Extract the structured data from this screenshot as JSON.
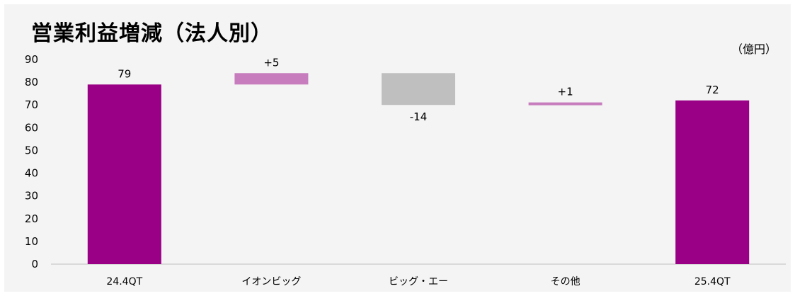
{
  "title": "営業利益増減（法人別）",
  "unit": "（億円）",
  "colors": {
    "total": "#990085",
    "increase": "#c77dbd",
    "decrease": "#bfbfbf",
    "background": "#f4f4f4",
    "axis": "#bfbfbf"
  },
  "chart_data": {
    "type": "bar",
    "subtype": "waterfall",
    "title": "営業利益増減（法人別）",
    "unit": "（億円）",
    "categories": [
      "24.4QT",
      "イオンビッグ",
      "ビッグ・エー",
      "その他",
      "25.4QT"
    ],
    "steps": [
      {
        "category": "24.4QT",
        "kind": "total",
        "value": 79,
        "label": "79"
      },
      {
        "category": "イオンビッグ",
        "kind": "increase",
        "value": 5,
        "label": "+5"
      },
      {
        "category": "ビッグ・エー",
        "kind": "decrease",
        "value": -14,
        "label": "-14"
      },
      {
        "category": "その他",
        "kind": "increase",
        "value": 1,
        "label": "+1"
      },
      {
        "category": "25.4QT",
        "kind": "total",
        "value": 72,
        "label": "72"
      }
    ],
    "ylim": [
      0,
      90
    ],
    "yticks": [
      "0",
      "10",
      "20",
      "30",
      "40",
      "50",
      "60",
      "70",
      "80",
      "90"
    ],
    "grid": false,
    "legend": "none"
  }
}
